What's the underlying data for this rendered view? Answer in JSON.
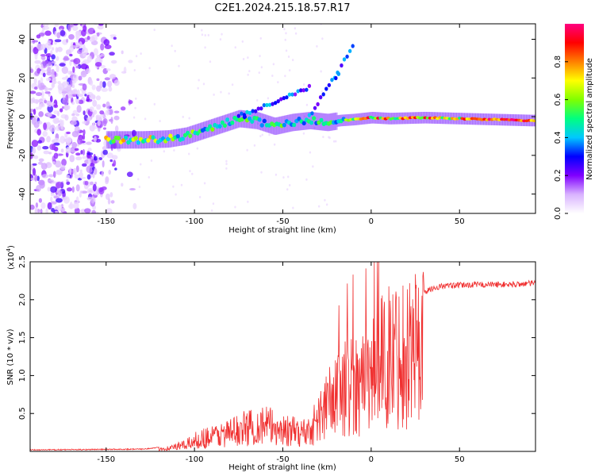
{
  "title": "C2E1.2024.215.18.57.R17",
  "chart_data": [
    {
      "type": "heatmap",
      "xlabel": "Height of straight line (km)",
      "ylabel": "Frequency (Hz)",
      "xlim": [
        -193,
        93
      ],
      "ylim": [
        -50,
        48
      ],
      "xticks": [
        -150,
        -100,
        -50,
        0,
        50
      ],
      "yticks": [
        -40,
        -20,
        0,
        20,
        40
      ],
      "ridge": {
        "x": [
          -145,
          -130,
          -115,
          -105,
          -95,
          -85,
          -75,
          -65,
          -55,
          -45,
          -35,
          -25,
          -18,
          -10,
          0,
          10,
          30,
          50,
          70,
          90
        ],
        "y": [
          -12,
          -12,
          -11.5,
          -10,
          -7,
          -4,
          -1,
          -2,
          -5,
          -3,
          -2,
          -3,
          -2,
          -1.5,
          -0.5,
          -1,
          -0.5,
          -1,
          -1.5,
          -2
        ]
      },
      "colorbar": {
        "label": "Normalized spectral amplitude",
        "ticks": [
          0.0,
          0.2,
          0.4,
          0.6,
          0.8
        ],
        "range": [
          0,
          1
        ],
        "colors": [
          "#ffffff",
          "#d9b3ff",
          "#8000ff",
          "#0000ff",
          "#00c8ff",
          "#00ff80",
          "#80ff00",
          "#ffff00",
          "#ff8000",
          "#ff0000",
          "#ff0080"
        ]
      }
    },
    {
      "type": "line",
      "xlabel": "Height of straight line (km)",
      "ylabel": "SNR (10 * v/v)",
      "yscale_label": "(x10",
      "yscale_exp": "4",
      "xlim": [
        -193,
        93
      ],
      "ylim": [
        0,
        2.5
      ],
      "xticks": [
        -150,
        -100,
        -50,
        0,
        50
      ],
      "yticks": [
        0.5,
        1.0,
        1.5,
        2.0,
        2.5
      ],
      "color": "#f03030",
      "envelope": {
        "x": [
          -193,
          -130,
          -115,
          -105,
          -100,
          -95,
          -80,
          -70,
          -60,
          -50,
          -40,
          -35,
          -30,
          -25,
          -20,
          -15,
          -10,
          -5,
          0,
          5,
          10,
          20,
          25,
          30,
          35,
          40,
          60,
          80,
          93
        ],
        "y": [
          0.02,
          0.03,
          0.06,
          0.12,
          0.2,
          0.25,
          0.35,
          0.45,
          0.5,
          0.4,
          0.35,
          0.4,
          0.6,
          0.9,
          1.0,
          1.2,
          1.3,
          1.3,
          1.4,
          1.6,
          1.8,
          1.9,
          2.0,
          2.1,
          2.15,
          2.18,
          2.2,
          2.2,
          2.22
        ]
      }
    }
  ]
}
